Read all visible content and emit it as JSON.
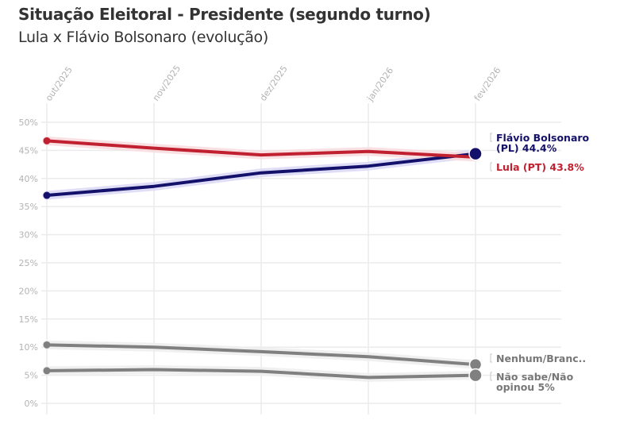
{
  "header": {
    "title": "Situação Eleitoral - Presidente (segundo turno)",
    "subtitle": "Lula x Flávio Bolsonaro (evolução)"
  },
  "chart_data": {
    "type": "line",
    "title": "Situação Eleitoral - Presidente (segundo turno)",
    "subtitle": "Lula x Flávio Bolsonaro (evolução)",
    "xlabel": "",
    "ylabel": "",
    "categories": [
      "out/2025",
      "nov/2025",
      "dez/2025",
      "jan/2026",
      "fev/2026"
    ],
    "ylim": [
      0,
      50
    ],
    "yticks": [
      0,
      5,
      10,
      15,
      20,
      25,
      30,
      35,
      40,
      45,
      50
    ],
    "ytick_labels": [
      "0%",
      "5%",
      "10%",
      "15%",
      "20%",
      "25%",
      "30%",
      "35%",
      "40%",
      "45%",
      "50%"
    ],
    "grid": true,
    "legend": "direct-labels-right",
    "series": [
      {
        "name": "Flávio Bolsonaro (PL)",
        "label_lines": [
          "Flávio Bolsonaro",
          "(PL) 44.4%"
        ],
        "color": "#14116b",
        "band_color": "#dcdaf5",
        "values": [
          37.0,
          38.6,
          41.0,
          42.2,
          44.4
        ]
      },
      {
        "name": "Lula (PT)",
        "label_lines": [
          "Lula (PT) 43.8%"
        ],
        "color": "#c0202f",
        "band_color": "#f7dde0",
        "values": [
          46.7,
          45.4,
          44.2,
          44.8,
          43.8
        ]
      },
      {
        "name": "Nenhum/Branco/Nulo",
        "label_lines": [
          "Nenhum/Branc.."
        ],
        "color": "#808080",
        "band_color": "#eeeeee",
        "values": [
          10.4,
          10.0,
          9.2,
          8.3,
          6.9
        ]
      },
      {
        "name": "Não sabe/Não opinou",
        "label_lines": [
          "Não sabe/Não",
          "opinou 5%"
        ],
        "color": "#808080",
        "band_color": "#eeeeee",
        "values": [
          5.8,
          6.0,
          5.7,
          4.6,
          5.0
        ]
      }
    ]
  }
}
